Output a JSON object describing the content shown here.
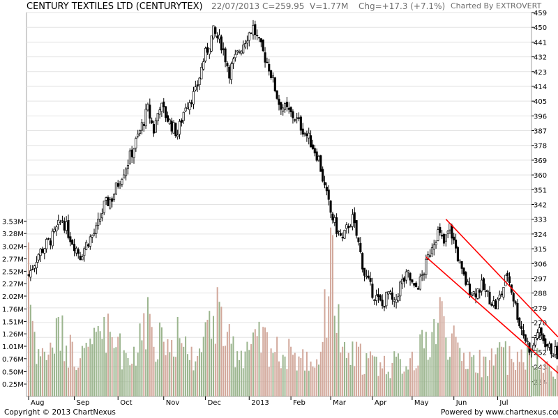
{
  "header": {
    "title": "CENTURY TEXTILES LTD (CENTURYTEX)",
    "date": "22/07/2013",
    "close": "C=259.95",
    "volume": "V=1.77M",
    "change": "Chg=+17.3 (+7.1%)",
    "credit": "Charted By EXTROVERT"
  },
  "footer": {
    "copyright": "Copyright © 2013 ChartNexus",
    "powered": "Powered by www.chartnexus.com"
  },
  "chart_data": {
    "type": "candlestick",
    "price_axis": {
      "ticks": [
        "459",
        "450",
        "441",
        "432",
        "423",
        "414",
        "405",
        "396",
        "387",
        "378",
        "369",
        "360",
        "351",
        "342",
        "333",
        "324",
        "315",
        "306",
        "297",
        "288",
        "279",
        "270",
        "261",
        "252",
        "243",
        "234"
      ],
      "range": [
        225,
        459
      ]
    },
    "volume_axis": {
      "ticks": [
        "3.53M",
        "3.28M",
        "3.02M",
        "2.77M",
        "2.52M",
        "2.27M",
        "2.02M",
        "1.76M",
        "1.51M",
        "1.26M",
        "1.01M",
        "0.76M",
        "0.50M",
        "0.25M"
      ],
      "range": [
        0,
        3.76
      ]
    },
    "x_axis": {
      "labels": [
        "Aug",
        "Sep",
        "Oct",
        "Nov",
        "Dec",
        "2013",
        "Feb",
        "Mar",
        "Apr",
        "May",
        "Jun",
        "Jul"
      ],
      "month_index": [
        0,
        23,
        45,
        68,
        89,
        111,
        132,
        152,
        173,
        193,
        214,
        236
      ],
      "total_sessions": 252
    },
    "price_points": [
      [
        0,
        299
      ],
      [
        5,
        312
      ],
      [
        12,
        322
      ],
      [
        17,
        333
      ],
      [
        21,
        322
      ],
      [
        26,
        311
      ],
      [
        30,
        320
      ],
      [
        34,
        326
      ],
      [
        38,
        341
      ],
      [
        42,
        346
      ],
      [
        46,
        358
      ],
      [
        50,
        368
      ],
      [
        54,
        380
      ],
      [
        57,
        390
      ],
      [
        60,
        400
      ],
      [
        63,
        387
      ],
      [
        66,
        403
      ],
      [
        71,
        392
      ],
      [
        75,
        385
      ],
      [
        79,
        403
      ],
      [
        84,
        410
      ],
      [
        88,
        430
      ],
      [
        93,
        447
      ],
      [
        97,
        440
      ],
      [
        101,
        423
      ],
      [
        106,
        436
      ],
      [
        110,
        445
      ],
      [
        113,
        450
      ],
      [
        116,
        440
      ],
      [
        121,
        426
      ],
      [
        126,
        404
      ],
      [
        130,
        399
      ],
      [
        134,
        395
      ],
      [
        138,
        388
      ],
      [
        142,
        380
      ],
      [
        146,
        370
      ],
      [
        149,
        352
      ],
      [
        152,
        337
      ],
      [
        155,
        327
      ],
      [
        158,
        320
      ],
      [
        161,
        330
      ],
      [
        163,
        333
      ],
      [
        166,
        318
      ],
      [
        169,
        300
      ],
      [
        172,
        291
      ],
      [
        175,
        285
      ],
      [
        178,
        280
      ],
      [
        181,
        288
      ],
      [
        184,
        280
      ],
      [
        187,
        293
      ],
      [
        191,
        299
      ],
      [
        194,
        290
      ],
      [
        197,
        295
      ],
      [
        200,
        305
      ],
      [
        203,
        318
      ],
      [
        206,
        325
      ],
      [
        209,
        318
      ],
      [
        212,
        328
      ],
      [
        215,
        315
      ],
      [
        218,
        300
      ],
      [
        221,
        292
      ],
      [
        224,
        288
      ],
      [
        228,
        292
      ],
      [
        232,
        285
      ],
      [
        235,
        280
      ],
      [
        238,
        288
      ],
      [
        241,
        300
      ],
      [
        244,
        285
      ],
      [
        247,
        270
      ],
      [
        250,
        260
      ],
      [
        253,
        252
      ],
      [
        256,
        265
      ],
      [
        259,
        260
      ],
      [
        262,
        254
      ],
      [
        265,
        252
      ],
      [
        268,
        248
      ],
      [
        271,
        242
      ],
      [
        273,
        252
      ],
      [
        276,
        260
      ]
    ],
    "volume_points": [
      [
        0,
        3.1
      ],
      [
        3,
        1.3
      ],
      [
        8,
        0.9
      ],
      [
        15,
        1.6
      ],
      [
        22,
        1.1
      ],
      [
        30,
        1.0
      ],
      [
        38,
        1.6
      ],
      [
        45,
        1.2
      ],
      [
        53,
        1.0
      ],
      [
        60,
        2.0
      ],
      [
        68,
        1.1
      ],
      [
        75,
        1.6
      ],
      [
        82,
        1.0
      ],
      [
        88,
        1.2
      ],
      [
        95,
        2.2
      ],
      [
        100,
        1.3
      ],
      [
        110,
        1.1
      ],
      [
        118,
        1.4
      ],
      [
        125,
        1.2
      ],
      [
        132,
        1.0
      ],
      [
        140,
        0.9
      ],
      [
        147,
        0.9
      ],
      [
        152,
        3.4
      ],
      [
        158,
        1.0
      ],
      [
        166,
        1.0
      ],
      [
        175,
        0.8
      ],
      [
        185,
        0.8
      ],
      [
        193,
        0.9
      ],
      [
        200,
        1.3
      ],
      [
        207,
        2.0
      ],
      [
        215,
        1.2
      ],
      [
        222,
        0.9
      ],
      [
        230,
        0.8
      ],
      [
        238,
        1.0
      ],
      [
        246,
        0.9
      ],
      [
        252,
        1.0
      ],
      [
        260,
        0.7
      ],
      [
        270,
        0.8
      ],
      [
        276,
        1.8
      ]
    ],
    "channel": {
      "upper": [
        [
          210,
          333
        ],
        [
          276,
          249
        ]
      ],
      "lower": [
        [
          200,
          310
        ],
        [
          276,
          229
        ]
      ],
      "color": "#ff0000"
    },
    "colors": {
      "up_volume": "#9bb58e",
      "down_volume": "#d2a89b",
      "candle": "#000000",
      "grid": "#e3e3e3"
    }
  }
}
